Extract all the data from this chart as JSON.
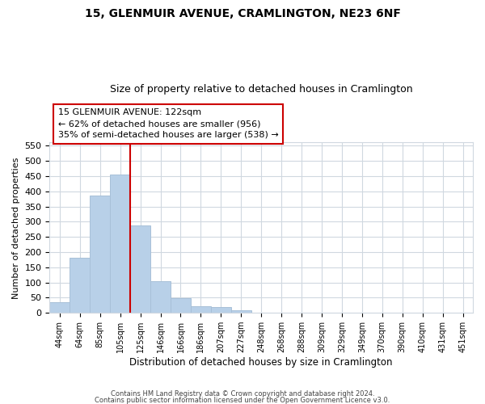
{
  "title": "15, GLENMUIR AVENUE, CRAMLINGTON, NE23 6NF",
  "subtitle": "Size of property relative to detached houses in Cramlington",
  "xlabel": "Distribution of detached houses by size in Cramlington",
  "ylabel": "Number of detached properties",
  "bar_labels": [
    "44sqm",
    "64sqm",
    "85sqm",
    "105sqm",
    "125sqm",
    "146sqm",
    "166sqm",
    "186sqm",
    "207sqm",
    "227sqm",
    "248sqm",
    "268sqm",
    "288sqm",
    "309sqm",
    "329sqm",
    "349sqm",
    "370sqm",
    "390sqm",
    "410sqm",
    "431sqm",
    "451sqm"
  ],
  "bar_values": [
    35,
    182,
    385,
    456,
    288,
    105,
    49,
    23,
    18,
    9,
    1,
    0,
    0,
    0,
    0,
    1,
    0,
    0,
    0,
    0,
    1
  ],
  "bar_color": "#b8d0e8",
  "bar_edge_color": "#a8c0d8",
  "vline_color": "#cc0000",
  "ylim": [
    0,
    560
  ],
  "yticks": [
    0,
    50,
    100,
    150,
    200,
    250,
    300,
    350,
    400,
    450,
    500,
    550
  ],
  "annotation_line1": "15 GLENMUIR AVENUE: 122sqm",
  "annotation_line2": "← 62% of detached houses are smaller (956)",
  "annotation_line3": "35% of semi-detached houses are larger (538) →",
  "annotation_box_color": "#ffffff",
  "annotation_box_edge": "#cc0000",
  "footer_line1": "Contains HM Land Registry data © Crown copyright and database right 2024.",
  "footer_line2": "Contains public sector information licensed under the Open Government Licence v3.0.",
  "bg_color": "#ffffff",
  "grid_color": "#d0d8e0",
  "title_fontsize": 10,
  "subtitle_fontsize": 9
}
